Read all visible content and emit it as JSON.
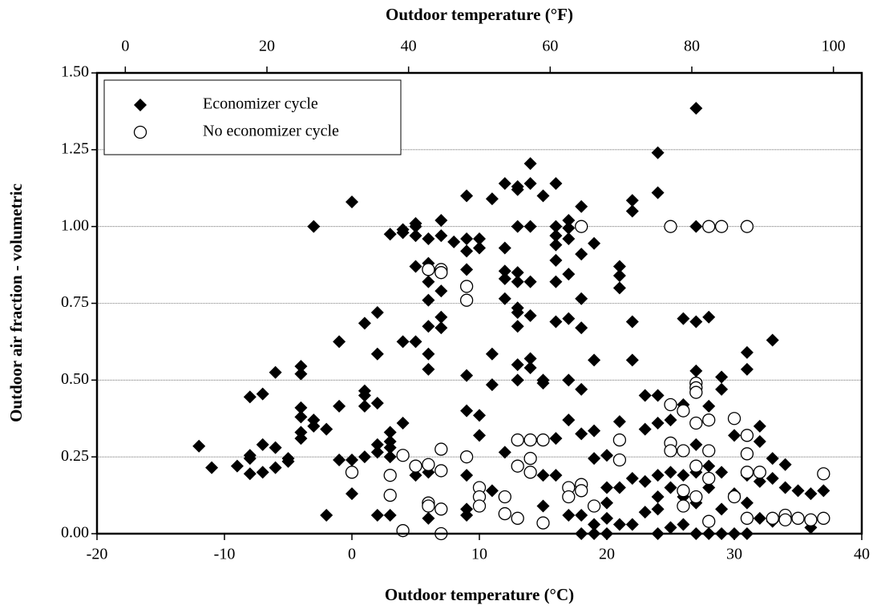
{
  "chart_data": {
    "type": "scatter",
    "xlabel": "Outdoor temperature (°C)",
    "x2label": "Outdoor temperature (°F)",
    "ylabel": "Outdoor air fraction - volumetric",
    "xlim": [
      -20,
      40
    ],
    "xticks": [
      -20,
      -10,
      0,
      10,
      20,
      30,
      40
    ],
    "x2lim": [
      -4,
      104
    ],
    "x2ticks": [
      0,
      20,
      40,
      60,
      80,
      100
    ],
    "ylim": [
      0,
      1.5
    ],
    "yticks": [
      {
        "value": 0,
        "label": "0.00"
      },
      {
        "value": 0.25,
        "label": "0.25"
      },
      {
        "value": 0.5,
        "label": "0.50"
      },
      {
        "value": 0.75,
        "label": "0.75"
      },
      {
        "value": 1,
        "label": "1.00"
      },
      {
        "value": 1.25,
        "label": "1.25"
      },
      {
        "value": 1.5,
        "label": "1.50"
      }
    ],
    "grid": true,
    "legend": "upper left",
    "series": [
      {
        "name": "Economizer cycle",
        "color": "#000000",
        "marker": "diamond",
        "x": [
          -12,
          -11,
          -9,
          -8,
          -8,
          -8,
          -8,
          -7,
          -7,
          -7,
          -6,
          -6,
          -6,
          -5,
          -5,
          -4,
          -4,
          -4,
          -4,
          -4,
          -4,
          -3,
          -3,
          -3,
          -2,
          -2,
          -1,
          -1,
          -1,
          0,
          0,
          0,
          1,
          1,
          1,
          1,
          1,
          2,
          2,
          2,
          2,
          2,
          2,
          3,
          3,
          3,
          3,
          3,
          3,
          4,
          4,
          4,
          4,
          5,
          5,
          5,
          5,
          5,
          5,
          6,
          6,
          6,
          6,
          6,
          6,
          6,
          6,
          6,
          7,
          7,
          7,
          7,
          7,
          7,
          8,
          9,
          9,
          9,
          9,
          9,
          9,
          9,
          9,
          9,
          10,
          10,
          10,
          10,
          10,
          11,
          11,
          11,
          11,
          12,
          12,
          12,
          12,
          12,
          12,
          13,
          13,
          13,
          13,
          13,
          13,
          13,
          13,
          13,
          13,
          14,
          14,
          14,
          14,
          14,
          14,
          14,
          15,
          15,
          15,
          15,
          15,
          16,
          16,
          16,
          16,
          16,
          16,
          16,
          16,
          16,
          17,
          17,
          17,
          17,
          17,
          17,
          17,
          17,
          18,
          18,
          18,
          18,
          18,
          18,
          18,
          18,
          19,
          19,
          19,
          19,
          19,
          19,
          20,
          20,
          20,
          20,
          20,
          21,
          21,
          21,
          21,
          21,
          21,
          22,
          22,
          22,
          22,
          22,
          22,
          23,
          23,
          23,
          23,
          24,
          24,
          24,
          24,
          24,
          24,
          24,
          24,
          25,
          25,
          25,
          25,
          25,
          26,
          26,
          26,
          26,
          26,
          27,
          27,
          27,
          27,
          27,
          27,
          27,
          27,
          28,
          28,
          28,
          28,
          28,
          28,
          29,
          29,
          29,
          29,
          29,
          30,
          30,
          30,
          31,
          31,
          31,
          31,
          31,
          32,
          32,
          32,
          32,
          33,
          33,
          33,
          33,
          34,
          34,
          34,
          35,
          36,
          36,
          37
        ],
        "values": [
          0.285,
          0.215,
          0.22,
          0.255,
          0.245,
          0.195,
          0.445,
          0.455,
          0.29,
          0.2,
          0.525,
          0.28,
          0.215,
          0.235,
          0.245,
          0.545,
          0.52,
          0.41,
          0.38,
          0.33,
          0.31,
          1.0,
          0.37,
          0.35,
          0.34,
          0.06,
          0.625,
          0.415,
          0.24,
          1.08,
          0.24,
          0.13,
          0.685,
          0.465,
          0.45,
          0.415,
          0.25,
          0.72,
          0.585,
          0.425,
          0.29,
          0.265,
          0.06,
          0.975,
          0.33,
          0.3,
          0.28,
          0.25,
          0.06,
          0.99,
          0.98,
          0.625,
          0.36,
          1.01,
          1.0,
          0.97,
          0.87,
          0.625,
          0.19,
          0.96,
          0.88,
          0.82,
          0.76,
          0.675,
          0.585,
          0.535,
          0.2,
          0.05,
          1.02,
          0.97,
          0.79,
          0.705,
          0.67,
          0.275,
          0.95,
          1.1,
          0.96,
          0.92,
          0.86,
          0.515,
          0.4,
          0.19,
          0.08,
          0.06,
          0.96,
          0.93,
          0.385,
          0.32,
          0.15,
          1.09,
          0.585,
          0.485,
          0.14,
          1.14,
          0.93,
          0.855,
          0.83,
          0.765,
          0.265,
          1.13,
          1.12,
          1.0,
          0.85,
          0.82,
          0.735,
          0.72,
          0.675,
          0.55,
          0.5,
          1.205,
          1.14,
          1.0,
          0.82,
          0.71,
          0.57,
          0.54,
          1.1,
          0.5,
          0.49,
          0.19,
          0.09,
          1.14,
          1.0,
          0.97,
          0.94,
          0.89,
          0.82,
          0.69,
          0.31,
          0.19,
          1.02,
          0.995,
          0.96,
          0.845,
          0.7,
          0.5,
          0.37,
          0.06,
          1.065,
          0.91,
          0.765,
          0.67,
          0.47,
          0.325,
          0.0,
          0.06,
          0.945,
          0.565,
          0.335,
          0.245,
          0.0,
          0.03,
          0.255,
          0.15,
          0.1,
          0.05,
          0.0,
          0.87,
          0.84,
          0.8,
          0.365,
          0.15,
          0.03,
          1.085,
          1.05,
          0.69,
          0.565,
          0.18,
          0.03,
          0.45,
          0.34,
          0.17,
          0.07,
          1.24,
          1.11,
          0.45,
          0.36,
          0.19,
          0.12,
          0.08,
          0.0,
          1.0,
          0.37,
          0.2,
          0.15,
          0.02,
          0.7,
          0.42,
          0.19,
          0.12,
          0.03,
          1.385,
          1.0,
          0.69,
          0.53,
          0.29,
          0.2,
          0.1,
          0.0,
          1.0,
          0.705,
          0.415,
          0.22,
          0.15,
          0.0,
          0.51,
          0.47,
          0.2,
          0.08,
          0.0,
          0.32,
          0.13,
          0.0,
          0.59,
          0.535,
          0.19,
          0.1,
          0.0,
          0.35,
          0.3,
          0.17,
          0.05,
          0.63,
          0.245,
          0.18,
          0.04,
          0.225,
          0.15,
          0.05,
          0.14,
          0.13,
          0.02,
          0.14
        ]
      },
      {
        "name": "No economizer cycle",
        "color": "#000000",
        "marker": "circle",
        "x": [
          0,
          3,
          3,
          4,
          4,
          5,
          6,
          6,
          6,
          6,
          7,
          7,
          7,
          7,
          7,
          7,
          9,
          9,
          9,
          10,
          10,
          10,
          12,
          12,
          13,
          13,
          13,
          14,
          14,
          14,
          15,
          15,
          17,
          17,
          18,
          18,
          18,
          19,
          21,
          21,
          25,
          25,
          25,
          25,
          26,
          26,
          26,
          26,
          27,
          27,
          27,
          27,
          27,
          27,
          28,
          28,
          28,
          28,
          28,
          29,
          30,
          30,
          31,
          31,
          31,
          31,
          31,
          32,
          33,
          34,
          34,
          35,
          36,
          37,
          37
        ],
        "values": [
          0.2,
          0.19,
          0.125,
          0.255,
          0.01,
          0.22,
          0.86,
          0.225,
          0.1,
          0.09,
          0.86,
          0.85,
          0.275,
          0.205,
          0.08,
          0.0,
          0.805,
          0.76,
          0.25,
          0.15,
          0.12,
          0.09,
          0.12,
          0.065,
          0.305,
          0.22,
          0.05,
          0.305,
          0.245,
          0.2,
          0.305,
          0.035,
          0.15,
          0.12,
          1.0,
          0.16,
          0.14,
          0.09,
          0.305,
          0.24,
          1.0,
          0.42,
          0.295,
          0.27,
          0.4,
          0.27,
          0.14,
          0.09,
          0.49,
          0.475,
          0.46,
          0.36,
          0.22,
          0.12,
          1.0,
          0.37,
          0.27,
          0.18,
          0.04,
          1.0,
          0.375,
          0.12,
          1.0,
          0.32,
          0.26,
          0.2,
          0.05,
          0.2,
          0.05,
          0.06,
          0.045,
          0.05,
          0.045,
          0.195,
          0.05
        ]
      }
    ]
  }
}
